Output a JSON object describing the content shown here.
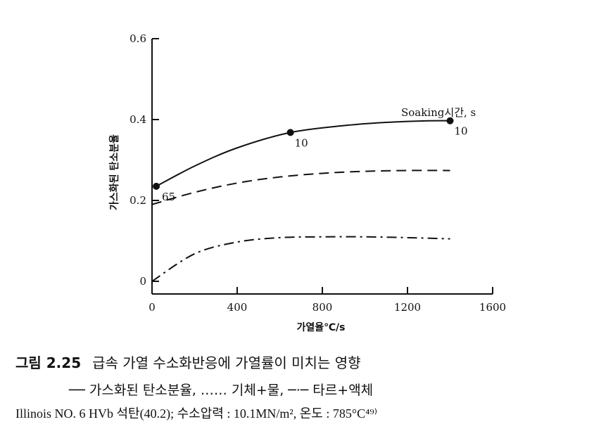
{
  "chart_data": {
    "type": "line",
    "xlabel": "가열율℃/s",
    "ylabel": "가스화된 탄소분율",
    "xlim": [
      0,
      1600
    ],
    "ylim": [
      0,
      0.6
    ],
    "x_ticks": [
      "0",
      "400",
      "800",
      "1200",
      "1600"
    ],
    "y_ticks": [
      "0",
      "0.2",
      "0.4",
      "0.6"
    ],
    "series": [
      {
        "name": "가스화된 탄소분율",
        "style": "solid",
        "x": [
          20,
          200,
          400,
          650,
          900,
          1100,
          1300,
          1400
        ],
        "y": [
          0.235,
          0.285,
          0.33,
          0.368,
          0.385,
          0.393,
          0.397,
          0.397
        ]
      },
      {
        "name": "기체+물",
        "style": "dashed",
        "x": [
          0,
          200,
          400,
          600,
          800,
          1000,
          1200,
          1400
        ],
        "y": [
          0.19,
          0.22,
          0.243,
          0.258,
          0.267,
          0.272,
          0.274,
          0.274
        ]
      },
      {
        "name": "타르+액체",
        "style": "dash-dot",
        "x": [
          0,
          200,
          400,
          600,
          800,
          1000,
          1200,
          1400
        ],
        "y": [
          0.0,
          0.068,
          0.097,
          0.108,
          0.11,
          0.11,
          0.108,
          0.105
        ]
      }
    ],
    "markers": [
      {
        "x": 20,
        "y": 0.235,
        "label": "65"
      },
      {
        "x": 650,
        "y": 0.368,
        "label": "10"
      },
      {
        "x": 1400,
        "y": 0.397,
        "label": "10"
      }
    ],
    "annotation": "Soaking시간, s",
    "grid": false
  },
  "caption": {
    "figure_number": "그림 2.25",
    "title": "급속 가열 수소화반응에 가열률이 미치는 영향",
    "legend_line": "── 가스화된 탄소분율, …… 기체+물, ─·─ 타르+액체",
    "note": "Illinois NO. 6 HVb 석탄(40.2); 수소압력 : 10.1MN/m², 온도 : 785°C⁴⁹⁾"
  }
}
